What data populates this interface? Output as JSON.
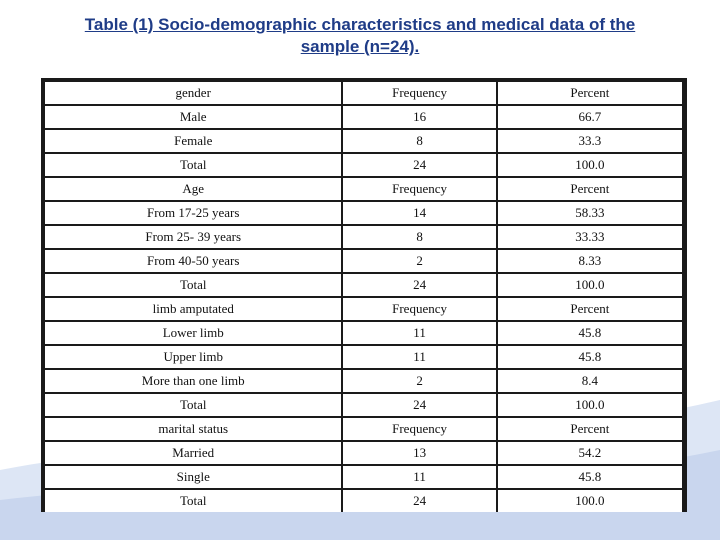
{
  "title_line1": "Table (1) Socio-demographic characteristics and medical data of the",
  "title_line2": "sample (n=24).",
  "colors": {
    "title": "#1f3c87",
    "swoosh": "#c9d6ee",
    "border": "#1a1a1a"
  },
  "rows": [
    [
      "gender",
      "Frequency",
      "Percent"
    ],
    [
      "Male",
      "16",
      "66.7"
    ],
    [
      "Female",
      "8",
      "33.3"
    ],
    [
      "Total",
      "24",
      "100.0"
    ],
    [
      "Age",
      "Frequency",
      "Percent"
    ],
    [
      "From 17-25 years",
      "14",
      "58.33"
    ],
    [
      "From 25- 39 years",
      "8",
      "33.33"
    ],
    [
      "From 40-50 years",
      "2",
      "8.33"
    ],
    [
      "Total",
      "24",
      "100.0"
    ],
    [
      "limb amputated",
      "Frequency",
      "Percent"
    ],
    [
      "Lower limb",
      "11",
      "45.8"
    ],
    [
      "Upper limb",
      "11",
      "45.8"
    ],
    [
      "More than one limb",
      "2",
      "8.4"
    ],
    [
      "Total",
      "24",
      "100.0"
    ],
    [
      "marital status",
      "Frequency",
      "Percent"
    ],
    [
      "Married",
      "13",
      "54.2"
    ],
    [
      "Single",
      "11",
      "45.8"
    ],
    [
      "Total",
      "24",
      "100.0"
    ]
  ]
}
